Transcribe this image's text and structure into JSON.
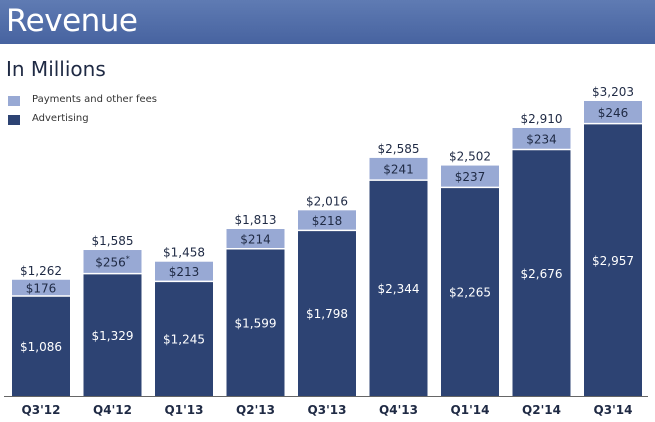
{
  "header": {
    "title": "Revenue"
  },
  "subtitle": "In Millions",
  "colors": {
    "title_bar": "#4f6aa6",
    "advertising": "#2d4373",
    "payments": "#98a9d4",
    "label_dark": "#1f2a44",
    "axis": "#666666"
  },
  "legend": [
    {
      "label": "Payments and other fees",
      "series": "payments"
    },
    {
      "label": "Advertising",
      "series": "advertising"
    }
  ],
  "chart_data": {
    "type": "bar",
    "stacked": true,
    "title": "Revenue",
    "subtitle": "In Millions",
    "xlabel": "",
    "ylabel": "",
    "ylim": [
      0,
      3400
    ],
    "grid": false,
    "legend_position": "top-left",
    "categories": [
      "Q3'12",
      "Q4'12",
      "Q1'13",
      "Q2'13",
      "Q3'13",
      "Q4'13",
      "Q1'14",
      "Q2'14",
      "Q3'14"
    ],
    "series": [
      {
        "name": "Advertising",
        "key": "advertising",
        "values": [
          1086,
          1329,
          1245,
          1599,
          1798,
          2344,
          2265,
          2676,
          2957
        ],
        "labels": [
          "$1,086",
          "$1,329",
          "$1,245",
          "$1,599",
          "$1,798",
          "$2,344",
          "$2,265",
          "$2,676",
          "$2,957"
        ]
      },
      {
        "name": "Payments and other fees",
        "key": "payments",
        "values": [
          176,
          256,
          213,
          214,
          218,
          241,
          237,
          234,
          246
        ],
        "labels": [
          "$176",
          "$256",
          "$213",
          "$214",
          "$218",
          "$241",
          "$237",
          "$234",
          "$246"
        ],
        "footnote_marks": [
          "",
          "*",
          "",
          "",
          "",
          "",
          "",
          "",
          ""
        ]
      }
    ],
    "totals": [
      1262,
      1585,
      1458,
      1813,
      2016,
      2585,
      2502,
      2910,
      3203
    ],
    "total_labels": [
      "$1,262",
      "$1,585",
      "$1,458",
      "$1,813",
      "$2,016",
      "$2,585",
      "$2,502",
      "$2,910",
      "$3,203"
    ]
  }
}
